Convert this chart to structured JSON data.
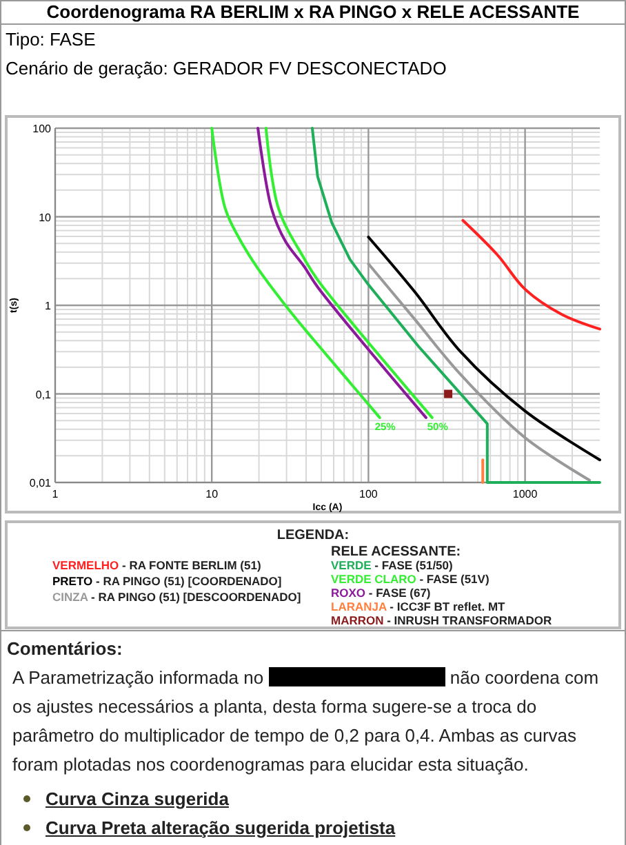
{
  "chart_data": {
    "type": "line",
    "title": "Coordenograma RA BERLIM x RA PINGO x RELE ACESSANTE",
    "subtitle": "Tipo: FASE\nCenário de geração: GERADOR FV DESCONECTADO",
    "xlabel": "Icc (A)",
    "ylabel": "t(s)",
    "legend_title": "LEGENDA:",
    "log": "xy",
    "grid": true,
    "legend": "bottom",
    "xlim": [
      1,
      3000
    ],
    "ylim": [
      0.01,
      100
    ],
    "xticks": [
      1,
      10,
      100,
      1000
    ],
    "yticks": [
      {
        "value": 0.01,
        "label": "0,01"
      },
      {
        "value": 0.1,
        "label": "0,1"
      },
      1,
      10,
      100
    ],
    "series": [
      {
        "name": "VERMELHO - RA FONTE BERLIM (51)",
        "color": "#ff2020",
        "x": [
          401,
          667,
          1000,
          1718,
          3000
        ],
        "values": [
          9.1,
          3.7,
          1.52,
          0.79,
          0.54
        ]
      },
      {
        "name": "PRETO - RA PINGO (51) [COORDENADO]",
        "color": "#000000",
        "x": [
          100,
          197,
          387,
          1000,
          3000
        ],
        "values": [
          5.9,
          1.43,
          0.3,
          0.064,
          0.018
        ]
      },
      {
        "name": "CINZA - RA PINGO (51) [DESCOORDENADO]",
        "color": "#999999",
        "x": [
          100,
          197,
          387,
          1000,
          2580
        ],
        "values": [
          2.94,
          0.7,
          0.166,
          0.032,
          0.0106
        ]
      },
      {
        "name": "VERDE - FASE (51/50)",
        "color": "#1fae5a",
        "x": [
          43.8,
          47.4,
          58.3,
          76.2,
          100,
          210,
          574,
          574,
          3000
        ],
        "values": [
          100,
          28.5,
          8.6,
          3.3,
          1.71,
          0.34,
          0.046,
          0.01,
          0.01
        ]
      },
      {
        "name": "VERDE CLARO - FASE (51V)",
        "color": "#33ee33",
        "x": [
          10,
          12.2,
          15,
          19.7,
          29.5,
          38.8,
          47.5,
          118
        ],
        "values": [
          100,
          12.3,
          5.66,
          2.6,
          1,
          0.55,
          0.36,
          0.054
        ]
      },
      {
        "color": "#33ee33",
        "x": [
          22.2,
          26.7,
          38.8,
          47.5,
          255
        ],
        "values": [
          100,
          12.3,
          3.4,
          1.93,
          0.054
        ]
      },
      {
        "name": "ROXO - FASE (67)",
        "color": "#8b1a9b",
        "x": [
          19.7,
          24.1,
          29.5,
          38.8,
          47.5,
          233
        ],
        "values": [
          100,
          12.3,
          5.3,
          2.76,
          1.6,
          0.054
        ]
      },
      {
        "name": "LARANJA - ICC3F BT reflet. MT",
        "color": "#ff7f3f",
        "x": [
          537,
          537
        ],
        "values": [
          0.018,
          0.01
        ]
      },
      {
        "name": "MARRON - INRUSH TRANSFORMADOR",
        "color": "#8b1a1a",
        "type": "scatter",
        "marker": "square",
        "x": [
          323
        ],
        "values": [
          0.1
        ]
      }
    ],
    "annotations": [
      {
        "text": "25%",
        "x": 118,
        "y": 0.054
      },
      {
        "text": "50%",
        "x": 255,
        "y": 0.054
      },
      "RELE ACESSANTE:",
      "Comentários:",
      "A Parametrização informada no",
      "não coordena com os ajustes necessários a planta, desta forma sugere-se a troca do parâmetro do multiplicador de tempo de 0,2 para 0,4. Ambas as curvas foram plotadas nos coordenogramas para elucidar esta situação.",
      "Curva Cinza sugerida",
      "Curva Preta alteração sugerida projetista"
    ]
  }
}
